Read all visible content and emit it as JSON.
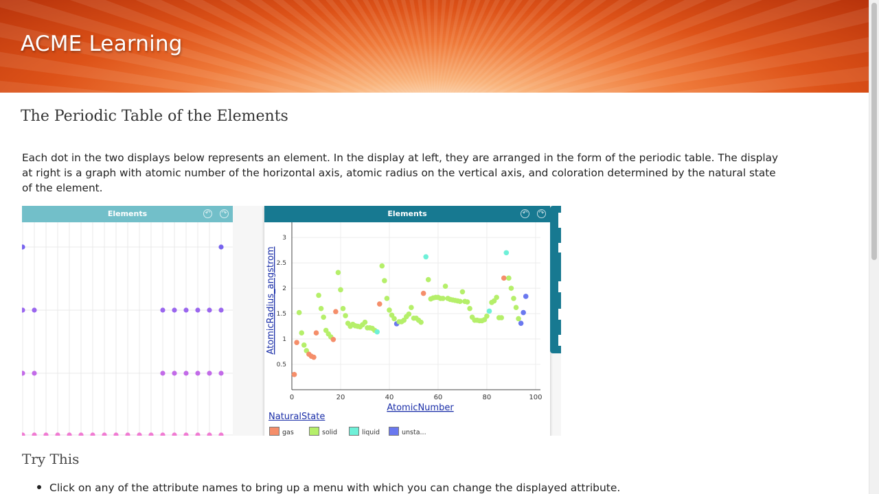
{
  "header": {
    "brand": "ACME Learning"
  },
  "page": {
    "title": "The Periodic Table of the Elements",
    "intro": "Each dot in the two displays below represents an element. In the display at left, they are arranged in the form of the periodic table. The display at right is a graph with atomic number of the horizontal axis, atomic radius on the vertical axis, and coloration determined by the natural state of the element.",
    "try_heading": "Try This",
    "bullets": [
      "Click on any of the attribute names to bring up a menu with which you can change the displayed attribute."
    ]
  },
  "left_tile": {
    "title": "Elements"
  },
  "right_tile": {
    "title": "Elements",
    "legend_title": "NaturalState",
    "legend": [
      {
        "label": "gas",
        "color": "#f58e6a"
      },
      {
        "label": "solid",
        "color": "#b5ef6a"
      },
      {
        "label": "liquid",
        "color": "#6ef0d8"
      },
      {
        "label": "unsta...",
        "color": "#6a78ef"
      }
    ]
  },
  "colors": {
    "tile_bar_light": "#72bfc9",
    "tile_bar_dark": "#177991",
    "link": "#1a2ea8"
  },
  "chart_data": {
    "type": "scatter",
    "xlabel": "AtomicNumber",
    "ylabel": "AtomicRadius_angstrom",
    "xlim": [
      0,
      102
    ],
    "ylim": [
      0,
      3.3
    ],
    "xticks": [
      "0",
      "20",
      "40",
      "60",
      "80",
      "100"
    ],
    "yticks": [
      "0.5",
      "1",
      "1.5",
      "2",
      "2.5",
      "3"
    ],
    "grid": true,
    "legend_position": "bottom",
    "points": [
      {
        "x": 1,
        "y": 0.3,
        "s": "gas"
      },
      {
        "x": 2,
        "y": 0.93,
        "s": "gas"
      },
      {
        "x": 3,
        "y": 1.52,
        "s": "solid"
      },
      {
        "x": 4,
        "y": 1.12,
        "s": "solid"
      },
      {
        "x": 5,
        "y": 0.88,
        "s": "solid"
      },
      {
        "x": 6,
        "y": 0.77,
        "s": "solid"
      },
      {
        "x": 7,
        "y": 0.7,
        "s": "gas"
      },
      {
        "x": 8,
        "y": 0.66,
        "s": "gas"
      },
      {
        "x": 9,
        "y": 0.64,
        "s": "gas"
      },
      {
        "x": 10,
        "y": 1.12,
        "s": "gas"
      },
      {
        "x": 11,
        "y": 1.86,
        "s": "solid"
      },
      {
        "x": 12,
        "y": 1.6,
        "s": "solid"
      },
      {
        "x": 13,
        "y": 1.43,
        "s": "solid"
      },
      {
        "x": 14,
        "y": 1.17,
        "s": "solid"
      },
      {
        "x": 15,
        "y": 1.1,
        "s": "solid"
      },
      {
        "x": 16,
        "y": 1.04,
        "s": "solid"
      },
      {
        "x": 17,
        "y": 0.99,
        "s": "gas"
      },
      {
        "x": 18,
        "y": 1.54,
        "s": "gas"
      },
      {
        "x": 19,
        "y": 2.31,
        "s": "solid"
      },
      {
        "x": 20,
        "y": 1.97,
        "s": "solid"
      },
      {
        "x": 21,
        "y": 1.6,
        "s": "solid"
      },
      {
        "x": 22,
        "y": 1.46,
        "s": "solid"
      },
      {
        "x": 23,
        "y": 1.31,
        "s": "solid"
      },
      {
        "x": 24,
        "y": 1.25,
        "s": "solid"
      },
      {
        "x": 25,
        "y": 1.29,
        "s": "solid"
      },
      {
        "x": 26,
        "y": 1.26,
        "s": "solid"
      },
      {
        "x": 27,
        "y": 1.25,
        "s": "solid"
      },
      {
        "x": 28,
        "y": 1.24,
        "s": "solid"
      },
      {
        "x": 29,
        "y": 1.28,
        "s": "solid"
      },
      {
        "x": 30,
        "y": 1.33,
        "s": "solid"
      },
      {
        "x": 31,
        "y": 1.22,
        "s": "solid"
      },
      {
        "x": 32,
        "y": 1.22,
        "s": "solid"
      },
      {
        "x": 33,
        "y": 1.21,
        "s": "solid"
      },
      {
        "x": 34,
        "y": 1.17,
        "s": "solid"
      },
      {
        "x": 35,
        "y": 1.14,
        "s": "liquid"
      },
      {
        "x": 36,
        "y": 1.69,
        "s": "gas"
      },
      {
        "x": 37,
        "y": 2.44,
        "s": "solid"
      },
      {
        "x": 38,
        "y": 2.15,
        "s": "solid"
      },
      {
        "x": 39,
        "y": 1.8,
        "s": "solid"
      },
      {
        "x": 40,
        "y": 1.57,
        "s": "solid"
      },
      {
        "x": 41,
        "y": 1.47,
        "s": "solid"
      },
      {
        "x": 42,
        "y": 1.4,
        "s": "solid"
      },
      {
        "x": 43,
        "y": 1.3,
        "s": "unstable"
      },
      {
        "x": 44,
        "y": 1.34,
        "s": "solid"
      },
      {
        "x": 45,
        "y": 1.34,
        "s": "solid"
      },
      {
        "x": 46,
        "y": 1.37,
        "s": "solid"
      },
      {
        "x": 47,
        "y": 1.44,
        "s": "solid"
      },
      {
        "x": 48,
        "y": 1.49,
        "s": "solid"
      },
      {
        "x": 49,
        "y": 1.62,
        "s": "solid"
      },
      {
        "x": 50,
        "y": 1.41,
        "s": "solid"
      },
      {
        "x": 51,
        "y": 1.41,
        "s": "solid"
      },
      {
        "x": 52,
        "y": 1.37,
        "s": "solid"
      },
      {
        "x": 53,
        "y": 1.33,
        "s": "solid"
      },
      {
        "x": 54,
        "y": 1.9,
        "s": "gas"
      },
      {
        "x": 55,
        "y": 2.62,
        "s": "liquid"
      },
      {
        "x": 56,
        "y": 2.17,
        "s": "solid"
      },
      {
        "x": 57,
        "y": 1.79,
        "s": "solid"
      },
      {
        "x": 58,
        "y": 1.81,
        "s": "solid"
      },
      {
        "x": 59,
        "y": 1.82,
        "s": "solid"
      },
      {
        "x": 60,
        "y": 1.82,
        "s": "solid"
      },
      {
        "x": 61,
        "y": 1.8,
        "s": "solid"
      },
      {
        "x": 62,
        "y": 1.8,
        "s": "solid"
      },
      {
        "x": 63,
        "y": 2.04,
        "s": "solid"
      },
      {
        "x": 64,
        "y": 1.8,
        "s": "solid"
      },
      {
        "x": 65,
        "y": 1.78,
        "s": "solid"
      },
      {
        "x": 66,
        "y": 1.77,
        "s": "solid"
      },
      {
        "x": 67,
        "y": 1.76,
        "s": "solid"
      },
      {
        "x": 68,
        "y": 1.75,
        "s": "solid"
      },
      {
        "x": 69,
        "y": 1.74,
        "s": "solid"
      },
      {
        "x": 70,
        "y": 1.93,
        "s": "solid"
      },
      {
        "x": 71,
        "y": 1.74,
        "s": "solid"
      },
      {
        "x": 72,
        "y": 1.73,
        "s": "solid"
      },
      {
        "x": 73,
        "y": 1.6,
        "s": "solid"
      },
      {
        "x": 74,
        "y": 1.43,
        "s": "solid"
      },
      {
        "x": 75,
        "y": 1.37,
        "s": "solid"
      },
      {
        "x": 76,
        "y": 1.37,
        "s": "solid"
      },
      {
        "x": 77,
        "y": 1.36,
        "s": "solid"
      },
      {
        "x": 78,
        "y": 1.36,
        "s": "solid"
      },
      {
        "x": 79,
        "y": 1.38,
        "s": "solid"
      },
      {
        "x": 80,
        "y": 1.45,
        "s": "solid"
      },
      {
        "x": 81,
        "y": 1.55,
        "s": "liquid"
      },
      {
        "x": 82,
        "y": 1.72,
        "s": "solid"
      },
      {
        "x": 83,
        "y": 1.75,
        "s": "solid"
      },
      {
        "x": 84,
        "y": 1.82,
        "s": "solid"
      },
      {
        "x": 85,
        "y": 1.42,
        "s": "solid"
      },
      {
        "x": 86,
        "y": 1.42,
        "s": "solid"
      },
      {
        "x": 87,
        "y": 2.2,
        "s": "gas"
      },
      {
        "x": 88,
        "y": 2.7,
        "s": "liquid"
      },
      {
        "x": 89,
        "y": 2.2,
        "s": "solid"
      },
      {
        "x": 90,
        "y": 2.0,
        "s": "solid"
      },
      {
        "x": 91,
        "y": 1.8,
        "s": "solid"
      },
      {
        "x": 92,
        "y": 1.62,
        "s": "solid"
      },
      {
        "x": 93,
        "y": 1.4,
        "s": "solid"
      },
      {
        "x": 94,
        "y": 1.31,
        "s": "unstable"
      },
      {
        "x": 95,
        "y": 1.52,
        "s": "unstable"
      },
      {
        "x": 96,
        "y": 1.84,
        "s": "unstable"
      }
    ]
  },
  "left_grid": {
    "rows": [
      {
        "color": "#7763ee",
        "cols": [
          0,
          17
        ]
      },
      {
        "color": "#9a66ee",
        "cols": [
          0,
          1,
          12,
          13,
          14,
          15,
          16,
          17
        ]
      },
      {
        "color": "#c26be8",
        "cols": [
          0,
          1,
          12,
          13,
          14,
          15,
          16,
          17
        ]
      },
      {
        "color": "#f07ad2",
        "cols": [
          0,
          1,
          2,
          3,
          4,
          5,
          6,
          7,
          8,
          9,
          10,
          11,
          12,
          13,
          14,
          15,
          16,
          17
        ]
      }
    ]
  }
}
